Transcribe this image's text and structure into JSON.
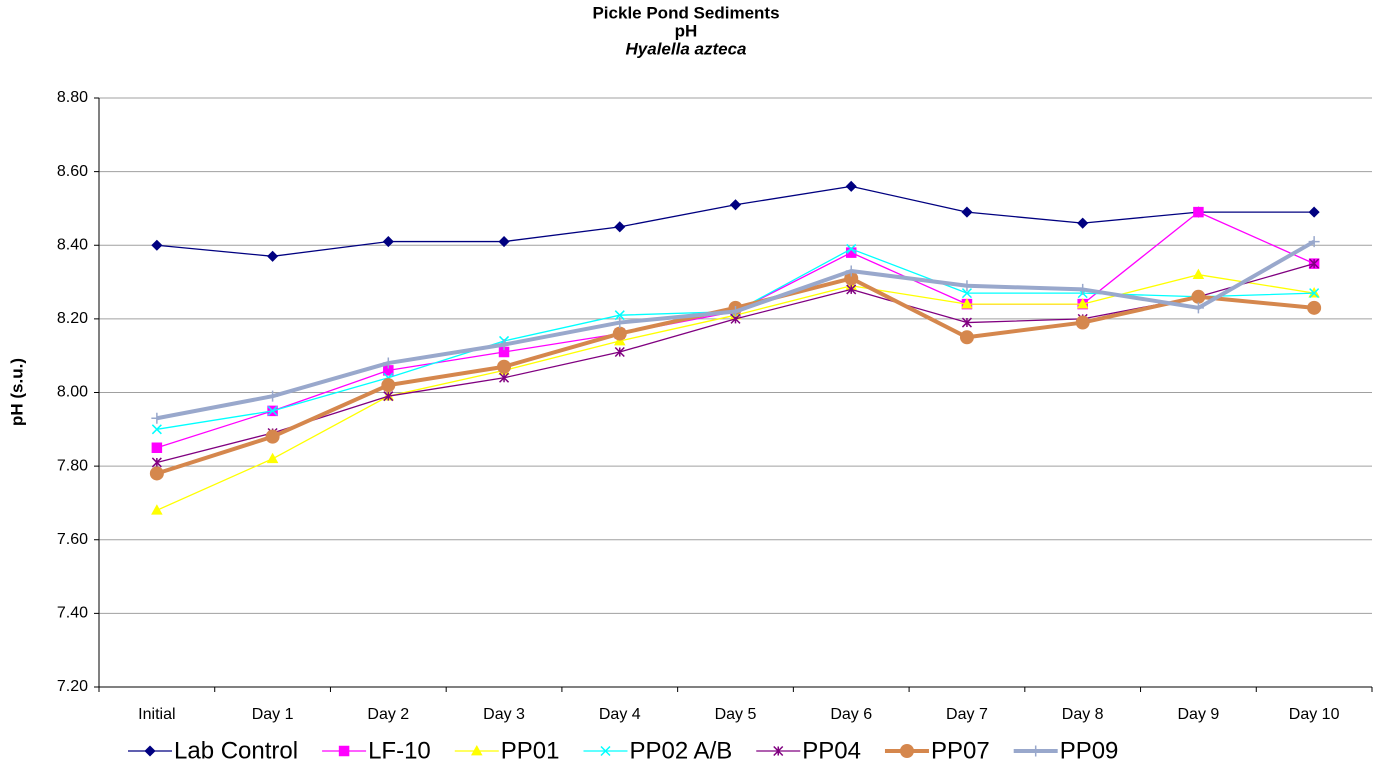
{
  "chart_data": {
    "type": "line",
    "title": "Pickle Pond Sediments",
    "subtitle": "pH",
    "species": "Hyalella azteca",
    "y_label": "pH (s.u.)",
    "categories": [
      "Initial",
      "Day 1",
      "Day 2",
      "Day 3",
      "Day 4",
      "Day 5",
      "Day 6",
      "Day 7",
      "Day 8",
      "Day 9",
      "Day 10"
    ],
    "series": [
      {
        "name": "Lab Control",
        "color": "#000080",
        "marker": "diamond",
        "values": [
          8.4,
          8.37,
          8.41,
          8.41,
          8.45,
          8.51,
          8.56,
          8.49,
          8.46,
          8.49,
          8.49
        ]
      },
      {
        "name": "LF-10",
        "color": "#ff00ff",
        "marker": "square",
        "values": [
          7.85,
          7.95,
          8.06,
          8.11,
          8.16,
          8.22,
          8.38,
          8.24,
          8.24,
          8.49,
          8.35
        ]
      },
      {
        "name": "PP01",
        "color": "#ffff00",
        "marker": "triangle",
        "values": [
          7.68,
          7.82,
          7.99,
          8.06,
          8.14,
          8.21,
          8.29,
          8.24,
          8.24,
          8.32,
          8.27
        ]
      },
      {
        "name": "PP02 A/B",
        "color": "#00ffff",
        "marker": "x",
        "values": [
          7.9,
          7.95,
          8.04,
          8.14,
          8.21,
          8.22,
          8.39,
          8.27,
          8.27,
          8.26,
          8.27
        ]
      },
      {
        "name": "PP04",
        "color": "#800080",
        "marker": "star",
        "values": [
          7.81,
          7.89,
          7.99,
          8.04,
          8.11,
          8.2,
          8.28,
          8.19,
          8.2,
          8.26,
          8.35
        ]
      },
      {
        "name": "PP07",
        "color": "#d5874d",
        "marker": "circle",
        "values": [
          7.78,
          7.88,
          8.02,
          8.07,
          8.16,
          8.23,
          8.31,
          8.15,
          8.19,
          8.26,
          8.23
        ]
      },
      {
        "name": "PP09",
        "color": "#99a8cc",
        "marker": "plus",
        "values": [
          7.93,
          7.99,
          8.08,
          8.13,
          8.19,
          8.22,
          8.33,
          8.29,
          8.28,
          8.23,
          8.41
        ]
      }
    ],
    "ylim": [
      7.2,
      8.8
    ],
    "yticks": [
      {
        "value": 7.2,
        "label": "7.20"
      },
      {
        "value": 7.4,
        "label": "7.40"
      },
      {
        "value": 7.6,
        "label": "7.60"
      },
      {
        "value": 7.8,
        "label": "7.80"
      },
      {
        "value": 8.0,
        "label": "8.00"
      },
      {
        "value": 8.2,
        "label": "8.20"
      },
      {
        "value": 8.4,
        "label": "8.40"
      },
      {
        "value": 8.6,
        "label": "8.60"
      },
      {
        "value": 8.8,
        "label": "8.80"
      }
    ],
    "grid": true
  }
}
